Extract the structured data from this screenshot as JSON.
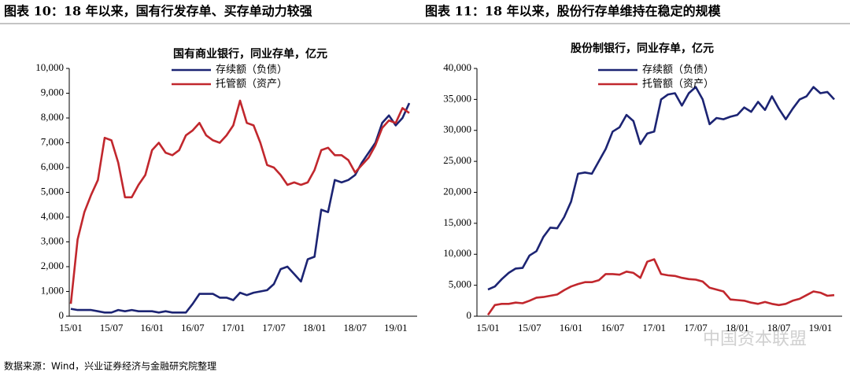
{
  "chart_data": [
    {
      "type": "line",
      "title": "图表 10：18 年以来，国有行发存单、买存单动力较强",
      "subtitle": "国有商业银行，同业存单，亿元",
      "categories": [
        "15/01",
        null,
        null,
        null,
        null,
        null,
        "15/07",
        null,
        null,
        null,
        null,
        null,
        "16/01",
        null,
        null,
        null,
        null,
        null,
        "16/07",
        null,
        null,
        null,
        null,
        null,
        "17/01",
        null,
        null,
        null,
        null,
        null,
        "17/07",
        null,
        null,
        null,
        null,
        null,
        "18/01",
        null,
        null,
        null,
        null,
        null,
        "18/07",
        null,
        null,
        null,
        null,
        null,
        "19/01",
        null,
        null
      ],
      "series": [
        {
          "name": "存续额（负债）",
          "color": "#1c2473",
          "values": [
            300,
            250,
            250,
            250,
            200,
            150,
            150,
            250,
            200,
            250,
            200,
            200,
            200,
            150,
            200,
            150,
            150,
            150,
            500,
            900,
            900,
            900,
            750,
            750,
            650,
            950,
            850,
            950,
            1000,
            1050,
            1300,
            1900,
            2000,
            1700,
            1400,
            2300,
            2400,
            4300,
            4200,
            5500,
            5400,
            5500,
            5700,
            6200,
            6600,
            7000,
            7800,
            8100,
            7700,
            8000,
            8600
          ]
        },
        {
          "name": "托管额（资产）",
          "color": "#c1272d",
          "values": [
            500,
            3100,
            4200,
            4900,
            5500,
            7200,
            7100,
            6200,
            4800,
            4800,
            5300,
            5700,
            6700,
            7000,
            6600,
            6500,
            6700,
            7300,
            7500,
            7800,
            7300,
            7100,
            7000,
            7300,
            7700,
            8700,
            7800,
            7700,
            7000,
            6100,
            6000,
            5700,
            5300,
            5400,
            5300,
            5400,
            5900,
            6700,
            6800,
            6500,
            6500,
            6300,
            5800,
            6100,
            6400,
            6900,
            7600,
            7900,
            7800,
            8400,
            8200
          ]
        }
      ],
      "ylim": [
        0,
        10000
      ],
      "yticks": [
        0,
        {
          "value": 1000,
          "label": "1,000"
        },
        {
          "value": 2000,
          "label": "2,000"
        },
        {
          "value": 3000,
          "label": "3,000"
        },
        {
          "value": 4000,
          "label": "4,000"
        },
        {
          "value": 5000,
          "label": "5,000"
        },
        {
          "value": 6000,
          "label": "6,000"
        },
        {
          "value": 7000,
          "label": "7,000"
        },
        {
          "value": 8000,
          "label": "8,000"
        },
        {
          "value": 9000,
          "label": "9,000"
        },
        {
          "value": 10000,
          "label": "10,000"
        }
      ]
    },
    {
      "type": "line",
      "title": "图表 11：18 年以来，股份行存单维持在稳定的规模",
      "subtitle": "股份制银行，同业存单，亿元",
      "categories": [
        "15/01",
        null,
        null,
        null,
        null,
        null,
        "15/07",
        null,
        null,
        null,
        null,
        null,
        "16/01",
        null,
        null,
        null,
        null,
        null,
        "16/07",
        null,
        null,
        null,
        null,
        null,
        "17/01",
        null,
        null,
        null,
        null,
        null,
        "17/07",
        null,
        null,
        null,
        null,
        null,
        "18/01",
        null,
        null,
        null,
        null,
        null,
        "18/07",
        null,
        null,
        null,
        null,
        null,
        "19/01",
        null,
        null
      ],
      "series": [
        {
          "name": "存续额（负债）",
          "color": "#1c2473",
          "values": [
            4300,
            4800,
            6000,
            7000,
            7700,
            7800,
            9800,
            10500,
            12800,
            14300,
            14200,
            16000,
            18500,
            23000,
            23200,
            23000,
            25000,
            27000,
            29800,
            30500,
            32500,
            31500,
            27800,
            29500,
            29800,
            35000,
            35800,
            36000,
            34000,
            36000,
            37000,
            35000,
            31000,
            32000,
            31800,
            32200,
            32500,
            33700,
            33000,
            34600,
            33300,
            35500,
            33500,
            31800,
            33500,
            35000,
            35500,
            37000,
            36000,
            36200,
            35000
          ]
        },
        {
          "name": "托管额（资产）",
          "color": "#c1272d",
          "values": [
            200,
            1800,
            2000,
            2000,
            2200,
            2100,
            2500,
            3000,
            3100,
            3300,
            3500,
            4200,
            4800,
            5200,
            5500,
            5500,
            5800,
            6800,
            6800,
            6700,
            7200,
            7000,
            6200,
            8800,
            9200,
            6800,
            6600,
            6500,
            6200,
            6000,
            5900,
            5600,
            4600,
            4300,
            4000,
            2700,
            2600,
            2500,
            2200,
            2000,
            2300,
            2000,
            1800,
            2000,
            2500,
            2800,
            3400,
            4000,
            3800,
            3300,
            3400
          ]
        }
      ],
      "ylim": [
        0,
        40000
      ],
      "yticks": [
        0,
        {
          "value": 5000,
          "label": "5,000"
        },
        {
          "value": 10000,
          "label": "10,000"
        },
        {
          "value": 15000,
          "label": "15,000"
        },
        {
          "value": 20000,
          "label": "20,000"
        },
        {
          "value": 25000,
          "label": "25,000"
        },
        {
          "value": 30000,
          "label": "30,000"
        },
        {
          "value": 35000,
          "label": "35,000"
        },
        {
          "value": 40000,
          "label": "40,000"
        }
      ]
    }
  ],
  "source": "数据来源：Wind，兴业证券经济与金融研究院整理",
  "watermark": "中国资本联盟"
}
